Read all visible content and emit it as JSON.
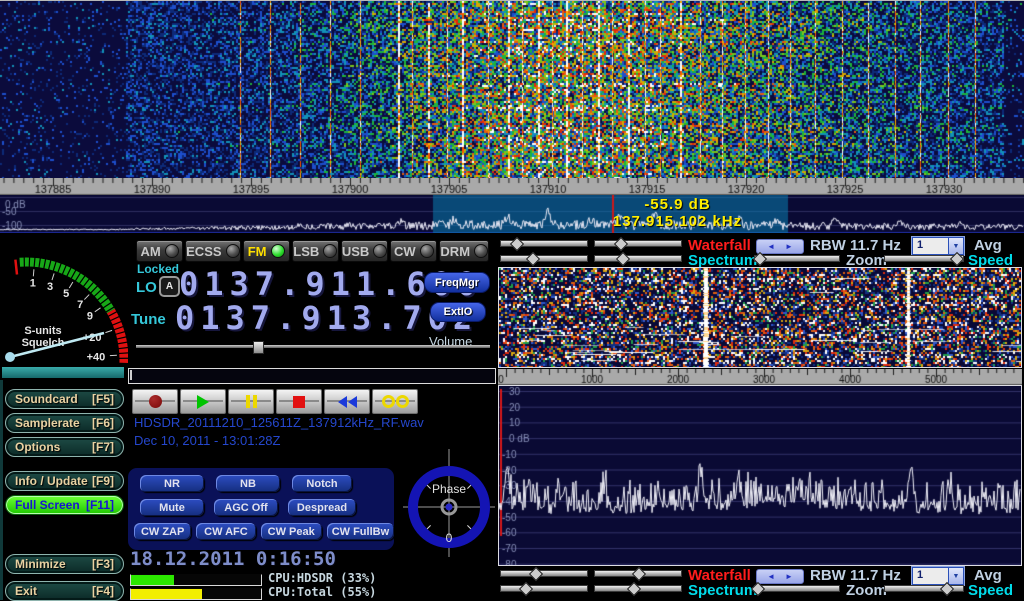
{
  "app": {
    "title": "HDSDR"
  },
  "colors": {
    "accent_red": "#ff1c1c",
    "accent_cyan": "#00dcea",
    "lcd_digits": "#a2aaee",
    "led_green_active": "#2ede2e",
    "fullscreen_green": "#3fe410",
    "file_text_blue": "#2547cd",
    "readout_yellow": "#ffee00",
    "selection_teal": "rgba(10,125,175,0.55)"
  },
  "icons": {
    "arrow_left": "◄",
    "arrow_right": "►",
    "dropdown_arrow": "▼"
  },
  "rf_display": {
    "scale_labels": [
      "137885",
      "137890",
      "137895",
      "137900",
      "137905",
      "137910",
      "137915",
      "137920",
      "137925",
      "137930"
    ],
    "db_labels": [
      "0 dB",
      "-50",
      "-100"
    ],
    "readout_db": "-55.9 dB",
    "readout_freq": "137.915.102 kHz"
  },
  "meter": {
    "title": "S-units",
    "subtitle": "Squelch",
    "marks": [
      {
        "t": "1",
        "a": 85
      },
      {
        "t": "3",
        "a": 72
      },
      {
        "t": "5",
        "a": 59
      },
      {
        "t": "7",
        "a": 46
      },
      {
        "t": "9",
        "a": 35
      },
      {
        "t": "+20",
        "a": 19
      },
      {
        "t": "+40",
        "a": 3
      }
    ]
  },
  "modes": {
    "items": [
      {
        "label": "AM",
        "active": false
      },
      {
        "label": "ECSS",
        "active": false
      },
      {
        "label": "FM",
        "active": true
      },
      {
        "label": "LSB",
        "active": false
      },
      {
        "label": "USB",
        "active": false
      },
      {
        "label": "CW",
        "active": false
      },
      {
        "label": "DRM",
        "active": false
      }
    ]
  },
  "vfo": {
    "locked": "Locked",
    "lo_label": "LO",
    "lo_lock": "A",
    "lo_value": "0137.911.600",
    "tune_label": "Tune",
    "tune_value": "0137.913.702",
    "freqmgr": "FreqMgr",
    "extio": "ExtIO",
    "volume": "Volume"
  },
  "left_menu": {
    "items": [
      {
        "label": "Soundcard",
        "key": "[F5]"
      },
      {
        "label": "Samplerate",
        "key": "[F6]"
      },
      {
        "label": "Options",
        "key": "[F7]"
      },
      {
        "label": "Info / Update",
        "key": "[F9]"
      },
      {
        "label": "Full Screen",
        "key": "[F11]"
      },
      {
        "label": "Minimize",
        "key": "[F3]"
      },
      {
        "label": "Exit",
        "key": "[F4]"
      }
    ]
  },
  "recorder": {
    "filename": "HDSDR_20111210_125611Z_137912kHz_RF.wav",
    "file_date": "Dec 10, 2011 - 13:01:28Z",
    "buttons": [
      "record",
      "play",
      "pause",
      "stop",
      "rewind",
      "loop"
    ]
  },
  "dsp": {
    "buttons": [
      "NR",
      "NB",
      "Notch",
      "Mute",
      "AGC Off",
      "Despread",
      "CW ZAP",
      "CW AFC",
      "CW Peak",
      "CW FullBw"
    ]
  },
  "phase": {
    "label": "Phase",
    "zero": "0"
  },
  "status": {
    "clock": "18.12.2011 0:16:50",
    "cpu_hdsdr": "CPU:HDSDR (33%)",
    "cpu_total": "CPU:Total (55%)",
    "cpu_hdsdr_pct": 33,
    "cpu_total_pct": 55
  },
  "af_panel": {
    "waterfall": "Waterfall",
    "spectrum": "Spectrum",
    "rbw": "RBW 11.7 Hz",
    "zoom": "Zoom",
    "avg": "Avg",
    "avg_value": "1",
    "speed": "Speed",
    "scale_labels": [
      "1000",
      "2000",
      "3000",
      "4000",
      "5000"
    ],
    "scale_origin": "0",
    "db_labels": [
      "30",
      "20",
      "10",
      "0 dB",
      "-10",
      "-20",
      "-30",
      "-40",
      "-50",
      "-60",
      "-70",
      "-80"
    ]
  }
}
